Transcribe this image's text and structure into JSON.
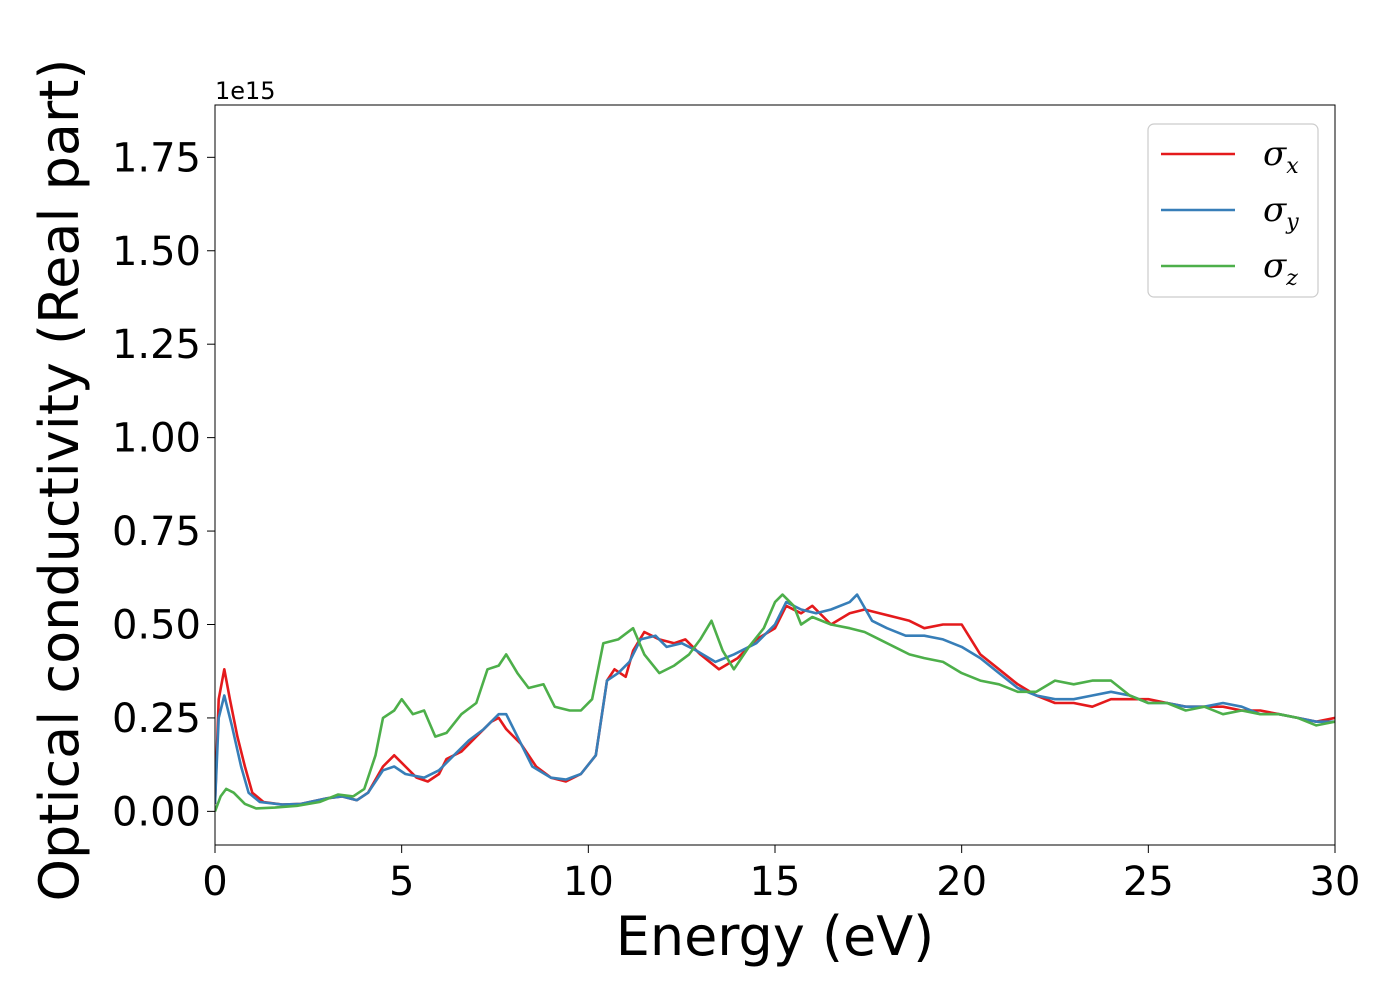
{
  "chart_data": {
    "type": "line",
    "xlabel": "Energy (eV)",
    "ylabel": "Optical conductivity (Real part)",
    "y_offset_label": "1e15",
    "xlim": [
      0,
      30
    ],
    "ylim": [
      -0.09,
      1.89
    ],
    "xticks": [
      0,
      5,
      10,
      15,
      20,
      25,
      30
    ],
    "xtick_labels": [
      "0",
      "5",
      "10",
      "15",
      "20",
      "25",
      "30"
    ],
    "yticks": [
      0.0,
      0.25,
      0.5,
      0.75,
      1.0,
      1.25,
      1.5,
      1.75
    ],
    "ytick_labels": [
      "0.00",
      "0.25",
      "0.50",
      "0.75",
      "1.00",
      "1.25",
      "1.50",
      "1.75"
    ],
    "grid": false,
    "legend_position": "top-right",
    "series": [
      {
        "name": "σx",
        "legend_symbol": "σ",
        "legend_sub": "x",
        "color": "#e41a1c",
        "points": [
          [
            0,
            0.02
          ],
          [
            0.1,
            0.3
          ],
          [
            0.25,
            0.38
          ],
          [
            0.4,
            0.3
          ],
          [
            0.6,
            0.2
          ],
          [
            0.8,
            0.12
          ],
          [
            1.0,
            0.05
          ],
          [
            1.3,
            0.025
          ],
          [
            1.8,
            0.018
          ],
          [
            2.3,
            0.02
          ],
          [
            3.0,
            0.035
          ],
          [
            3.4,
            0.04
          ],
          [
            3.8,
            0.03
          ],
          [
            4.1,
            0.05
          ],
          [
            4.5,
            0.12
          ],
          [
            4.8,
            0.15
          ],
          [
            5.1,
            0.12
          ],
          [
            5.4,
            0.09
          ],
          [
            5.7,
            0.08
          ],
          [
            6.0,
            0.1
          ],
          [
            6.2,
            0.14
          ],
          [
            6.6,
            0.16
          ],
          [
            7.0,
            0.2
          ],
          [
            7.4,
            0.24
          ],
          [
            7.6,
            0.25
          ],
          [
            7.8,
            0.22
          ],
          [
            8.2,
            0.18
          ],
          [
            8.6,
            0.12
          ],
          [
            9.0,
            0.09
          ],
          [
            9.4,
            0.08
          ],
          [
            9.8,
            0.1
          ],
          [
            10.2,
            0.15
          ],
          [
            10.5,
            0.35
          ],
          [
            10.7,
            0.38
          ],
          [
            11.0,
            0.36
          ],
          [
            11.2,
            0.43
          ],
          [
            11.5,
            0.48
          ],
          [
            11.9,
            0.46
          ],
          [
            12.3,
            0.45
          ],
          [
            12.6,
            0.46
          ],
          [
            13.0,
            0.42
          ],
          [
            13.5,
            0.38
          ],
          [
            14.0,
            0.41
          ],
          [
            14.5,
            0.46
          ],
          [
            15.0,
            0.49
          ],
          [
            15.3,
            0.55
          ],
          [
            15.7,
            0.53
          ],
          [
            16.0,
            0.55
          ],
          [
            16.5,
            0.5
          ],
          [
            17.0,
            0.53
          ],
          [
            17.4,
            0.54
          ],
          [
            17.8,
            0.53
          ],
          [
            18.2,
            0.52
          ],
          [
            18.6,
            0.51
          ],
          [
            19.0,
            0.49
          ],
          [
            19.5,
            0.5
          ],
          [
            20.0,
            0.5
          ],
          [
            20.5,
            0.42
          ],
          [
            21.0,
            0.38
          ],
          [
            21.5,
            0.34
          ],
          [
            22.0,
            0.31
          ],
          [
            22.5,
            0.29
          ],
          [
            23.0,
            0.29
          ],
          [
            23.5,
            0.28
          ],
          [
            24.0,
            0.3
          ],
          [
            24.5,
            0.3
          ],
          [
            25.0,
            0.3
          ],
          [
            25.5,
            0.29
          ],
          [
            26.0,
            0.28
          ],
          [
            26.5,
            0.28
          ],
          [
            27.0,
            0.28
          ],
          [
            27.5,
            0.27
          ],
          [
            28.0,
            0.27
          ],
          [
            28.5,
            0.26
          ],
          [
            29.0,
            0.25
          ],
          [
            29.5,
            0.24
          ],
          [
            30.0,
            0.25
          ]
        ]
      },
      {
        "name": "σy",
        "legend_symbol": "σ",
        "legend_sub": "y",
        "color": "#377eb8",
        "points": [
          [
            0,
            0.02
          ],
          [
            0.1,
            0.25
          ],
          [
            0.25,
            0.31
          ],
          [
            0.45,
            0.23
          ],
          [
            0.7,
            0.12
          ],
          [
            0.9,
            0.05
          ],
          [
            1.2,
            0.025
          ],
          [
            1.8,
            0.018
          ],
          [
            2.3,
            0.02
          ],
          [
            3.0,
            0.035
          ],
          [
            3.4,
            0.04
          ],
          [
            3.8,
            0.03
          ],
          [
            4.1,
            0.05
          ],
          [
            4.5,
            0.11
          ],
          [
            4.8,
            0.12
          ],
          [
            5.1,
            0.1
          ],
          [
            5.6,
            0.09
          ],
          [
            6.0,
            0.11
          ],
          [
            6.4,
            0.15
          ],
          [
            6.8,
            0.19
          ],
          [
            7.2,
            0.22
          ],
          [
            7.6,
            0.26
          ],
          [
            7.8,
            0.26
          ],
          [
            8.1,
            0.2
          ],
          [
            8.5,
            0.12
          ],
          [
            9.0,
            0.09
          ],
          [
            9.4,
            0.085
          ],
          [
            9.8,
            0.1
          ],
          [
            10.2,
            0.15
          ],
          [
            10.5,
            0.35
          ],
          [
            10.8,
            0.37
          ],
          [
            11.1,
            0.4
          ],
          [
            11.4,
            0.46
          ],
          [
            11.8,
            0.47
          ],
          [
            12.1,
            0.44
          ],
          [
            12.5,
            0.45
          ],
          [
            12.9,
            0.43
          ],
          [
            13.4,
            0.4
          ],
          [
            13.9,
            0.42
          ],
          [
            14.5,
            0.45
          ],
          [
            15.0,
            0.5
          ],
          [
            15.3,
            0.56
          ],
          [
            15.7,
            0.54
          ],
          [
            16.1,
            0.53
          ],
          [
            16.5,
            0.54
          ],
          [
            17.0,
            0.56
          ],
          [
            17.2,
            0.58
          ],
          [
            17.6,
            0.51
          ],
          [
            18.0,
            0.49
          ],
          [
            18.5,
            0.47
          ],
          [
            19.0,
            0.47
          ],
          [
            19.5,
            0.46
          ],
          [
            20.0,
            0.44
          ],
          [
            20.5,
            0.41
          ],
          [
            21.0,
            0.37
          ],
          [
            21.5,
            0.33
          ],
          [
            22.0,
            0.31
          ],
          [
            22.5,
            0.3
          ],
          [
            23.0,
            0.3
          ],
          [
            23.5,
            0.31
          ],
          [
            24.0,
            0.32
          ],
          [
            24.5,
            0.31
          ],
          [
            25.0,
            0.29
          ],
          [
            25.5,
            0.29
          ],
          [
            26.0,
            0.28
          ],
          [
            26.5,
            0.28
          ],
          [
            27.0,
            0.29
          ],
          [
            27.5,
            0.28
          ],
          [
            28.0,
            0.26
          ],
          [
            28.5,
            0.26
          ],
          [
            29.0,
            0.25
          ],
          [
            29.5,
            0.24
          ],
          [
            30.0,
            0.24
          ]
        ]
      },
      {
        "name": "σz",
        "legend_symbol": "σ",
        "legend_sub": "z",
        "color": "#4daf4a",
        "points": [
          [
            0,
            0.0
          ],
          [
            0.15,
            0.04
          ],
          [
            0.3,
            0.06
          ],
          [
            0.5,
            0.05
          ],
          [
            0.8,
            0.02
          ],
          [
            1.1,
            0.008
          ],
          [
            1.6,
            0.01
          ],
          [
            2.2,
            0.015
          ],
          [
            2.8,
            0.025
          ],
          [
            3.3,
            0.045
          ],
          [
            3.7,
            0.04
          ],
          [
            4.0,
            0.06
          ],
          [
            4.3,
            0.15
          ],
          [
            4.5,
            0.25
          ],
          [
            4.8,
            0.27
          ],
          [
            5.0,
            0.3
          ],
          [
            5.3,
            0.26
          ],
          [
            5.6,
            0.27
          ],
          [
            5.9,
            0.2
          ],
          [
            6.2,
            0.21
          ],
          [
            6.6,
            0.26
          ],
          [
            7.0,
            0.29
          ],
          [
            7.3,
            0.38
          ],
          [
            7.6,
            0.39
          ],
          [
            7.8,
            0.42
          ],
          [
            8.1,
            0.37
          ],
          [
            8.4,
            0.33
          ],
          [
            8.8,
            0.34
          ],
          [
            9.1,
            0.28
          ],
          [
            9.5,
            0.27
          ],
          [
            9.8,
            0.27
          ],
          [
            10.1,
            0.3
          ],
          [
            10.4,
            0.45
          ],
          [
            10.8,
            0.46
          ],
          [
            11.2,
            0.49
          ],
          [
            11.5,
            0.42
          ],
          [
            11.9,
            0.37
          ],
          [
            12.3,
            0.39
          ],
          [
            12.7,
            0.42
          ],
          [
            13.0,
            0.46
          ],
          [
            13.3,
            0.51
          ],
          [
            13.6,
            0.43
          ],
          [
            13.9,
            0.38
          ],
          [
            14.3,
            0.44
          ],
          [
            14.7,
            0.49
          ],
          [
            15.0,
            0.56
          ],
          [
            15.2,
            0.58
          ],
          [
            15.5,
            0.55
          ],
          [
            15.7,
            0.5
          ],
          [
            16.0,
            0.52
          ],
          [
            16.5,
            0.5
          ],
          [
            17.0,
            0.49
          ],
          [
            17.4,
            0.48
          ],
          [
            17.8,
            0.46
          ],
          [
            18.2,
            0.44
          ],
          [
            18.6,
            0.42
          ],
          [
            19.0,
            0.41
          ],
          [
            19.5,
            0.4
          ],
          [
            20.0,
            0.37
          ],
          [
            20.5,
            0.35
          ],
          [
            21.0,
            0.34
          ],
          [
            21.5,
            0.32
          ],
          [
            22.0,
            0.32
          ],
          [
            22.5,
            0.35
          ],
          [
            23.0,
            0.34
          ],
          [
            23.5,
            0.35
          ],
          [
            24.0,
            0.35
          ],
          [
            24.5,
            0.31
          ],
          [
            25.0,
            0.29
          ],
          [
            25.5,
            0.29
          ],
          [
            26.0,
            0.27
          ],
          [
            26.5,
            0.28
          ],
          [
            27.0,
            0.26
          ],
          [
            27.5,
            0.27
          ],
          [
            28.0,
            0.26
          ],
          [
            28.5,
            0.26
          ],
          [
            29.0,
            0.25
          ],
          [
            29.5,
            0.23
          ],
          [
            30.0,
            0.24
          ]
        ]
      }
    ]
  }
}
